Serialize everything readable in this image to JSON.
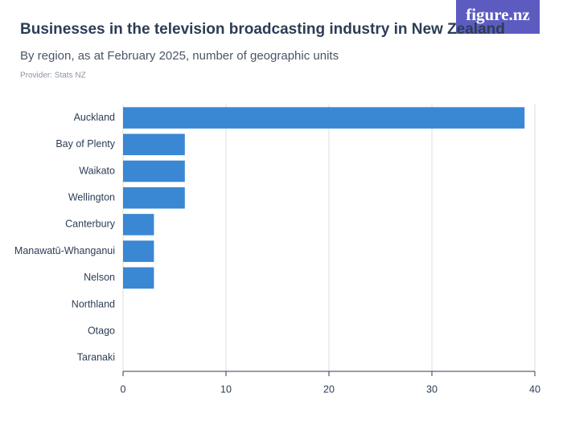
{
  "logo": "figure.nz",
  "chart_data": {
    "type": "bar",
    "orientation": "horizontal",
    "title": "Businesses in the television broadcasting industry in New Zealand",
    "subtitle": "By region, as at February 2025, number of geographic units",
    "provider": "Provider: Stats NZ",
    "categories": [
      "Auckland",
      "Bay of Plenty",
      "Waikato",
      "Wellington",
      "Canterbury",
      "Manawatū-Whanganui",
      "Nelson",
      "Northland",
      "Otago",
      "Taranaki"
    ],
    "values": [
      39,
      6,
      6,
      6,
      3,
      3,
      3,
      0,
      0,
      0
    ],
    "color": "#3a87d4",
    "xlim": [
      0,
      40
    ],
    "xticks": [
      0,
      10,
      20,
      30,
      40
    ],
    "grid": true
  }
}
